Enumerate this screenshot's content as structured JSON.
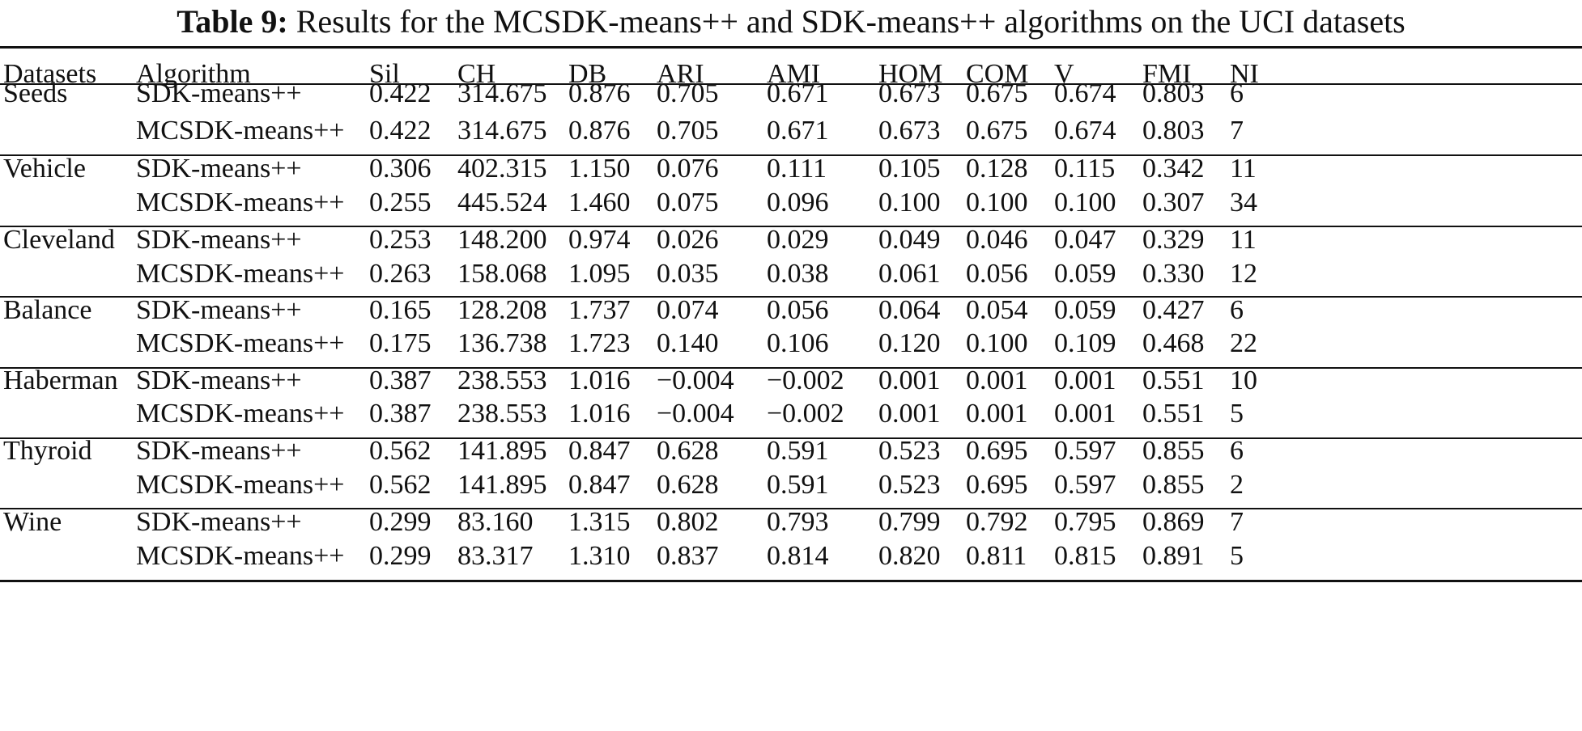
{
  "caption": {
    "label": "Table 9:",
    "text": "Results for the MCSDK-means++ and SDK-means++ algorithms on the UCI datasets"
  },
  "headers": [
    "Datasets",
    "Algorithm",
    "Sil",
    "CH",
    "DB",
    "ARI",
    "AMI",
    "HOM",
    "COM",
    "V",
    "FMI",
    "NI"
  ],
  "groups": [
    {
      "dataset": "Seeds",
      "rows": [
        {
          "algorithm": "SDK-means++",
          "values": [
            "0.422",
            "314.675",
            "0.876",
            "0.705",
            "0.671",
            "0.673",
            "0.675",
            "0.674",
            "0.803",
            "6"
          ]
        },
        {
          "algorithm": "MCSDK-means++",
          "values": [
            "0.422",
            "314.675",
            "0.876",
            "0.705",
            "0.671",
            "0.673",
            "0.675",
            "0.674",
            "0.803",
            "7"
          ]
        }
      ]
    },
    {
      "dataset": "Vehicle",
      "rows": [
        {
          "algorithm": "SDK-means++",
          "values": [
            "0.306",
            "402.315",
            "1.150",
            "0.076",
            "0.111",
            "0.105",
            "0.128",
            "0.115",
            "0.342",
            "11"
          ]
        },
        {
          "algorithm": "MCSDK-means++",
          "values": [
            "0.255",
            "445.524",
            "1.460",
            "0.075",
            "0.096",
            "0.100",
            "0.100",
            "0.100",
            "0.307",
            "34"
          ]
        }
      ]
    },
    {
      "dataset": "Cleveland",
      "rows": [
        {
          "algorithm": "SDK-means++",
          "values": [
            "0.253",
            "148.200",
            "0.974",
            "0.026",
            "0.029",
            "0.049",
            "0.046",
            "0.047",
            "0.329",
            "11"
          ]
        },
        {
          "algorithm": "MCSDK-means++",
          "values": [
            "0.263",
            "158.068",
            "1.095",
            "0.035",
            "0.038",
            "0.061",
            "0.056",
            "0.059",
            "0.330",
            "12"
          ]
        }
      ]
    },
    {
      "dataset": "Balance",
      "rows": [
        {
          "algorithm": "SDK-means++",
          "values": [
            "0.165",
            "128.208",
            "1.737",
            "0.074",
            "0.056",
            "0.064",
            "0.054",
            "0.059",
            "0.427",
            "6"
          ]
        },
        {
          "algorithm": "MCSDK-means++",
          "values": [
            "0.175",
            "136.738",
            "1.723",
            "0.140",
            "0.106",
            "0.120",
            "0.100",
            "0.109",
            "0.468",
            "22"
          ]
        }
      ]
    },
    {
      "dataset": "Haberman",
      "rows": [
        {
          "algorithm": "SDK-means++",
          "values": [
            "0.387",
            "238.553",
            "1.016",
            "−0.004",
            "−0.002",
            "0.001",
            "0.001",
            "0.001",
            "0.551",
            "10"
          ]
        },
        {
          "algorithm": "MCSDK-means++",
          "values": [
            "0.387",
            "238.553",
            "1.016",
            "−0.004",
            "−0.002",
            "0.001",
            "0.001",
            "0.001",
            "0.551",
            "5"
          ]
        }
      ]
    },
    {
      "dataset": "Thyroid",
      "rows": [
        {
          "algorithm": "SDK-means++",
          "values": [
            "0.562",
            "141.895",
            "0.847",
            "0.628",
            "0.591",
            "0.523",
            "0.695",
            "0.597",
            "0.855",
            "6"
          ]
        },
        {
          "algorithm": "MCSDK-means++",
          "values": [
            "0.562",
            "141.895",
            "0.847",
            "0.628",
            "0.591",
            "0.523",
            "0.695",
            "0.597",
            "0.855",
            "2"
          ]
        }
      ]
    },
    {
      "dataset": "Wine",
      "rows": [
        {
          "algorithm": "SDK-means++",
          "values": [
            "0.299",
            "83.160",
            "1.315",
            "0.802",
            "0.793",
            "0.799",
            "0.792",
            "0.795",
            "0.869",
            "7"
          ]
        },
        {
          "algorithm": "MCSDK-means++",
          "values": [
            "0.299",
            "83.317",
            "1.310",
            "0.837",
            "0.814",
            "0.820",
            "0.811",
            "0.815",
            "0.891",
            "5"
          ]
        }
      ]
    }
  ]
}
